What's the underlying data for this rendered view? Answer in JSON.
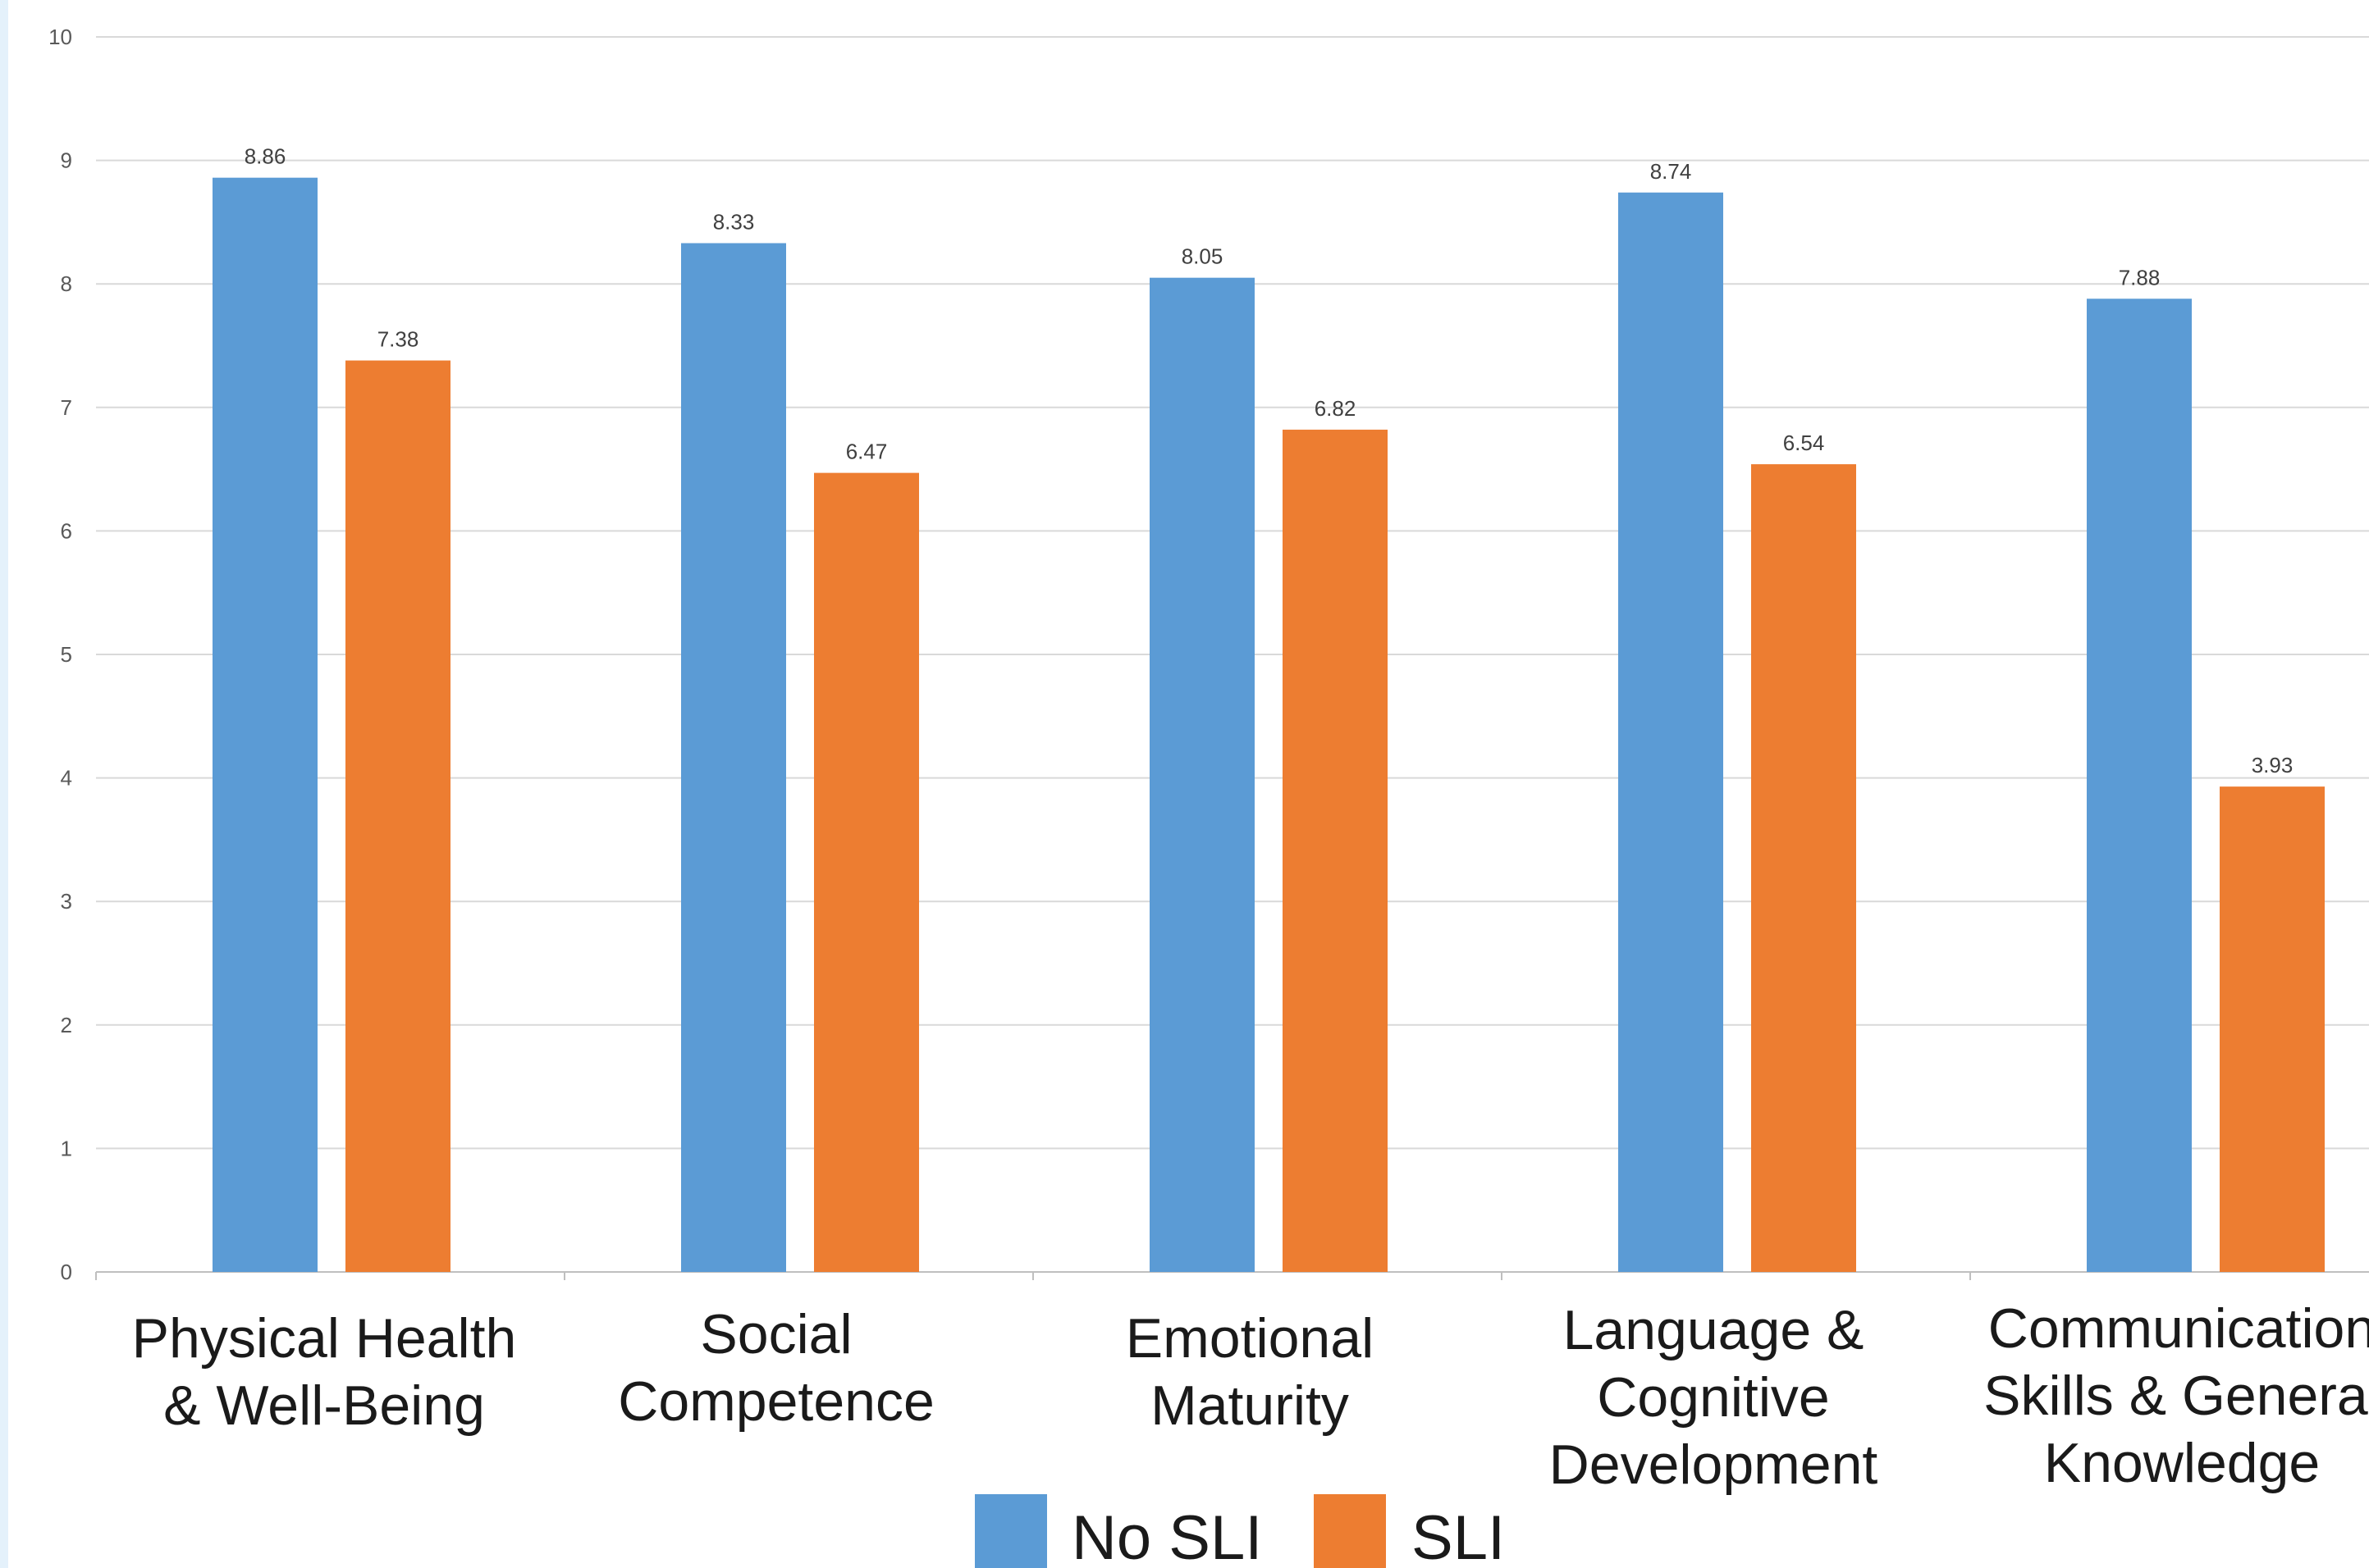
{
  "chart_data": {
    "type": "bar",
    "categories": [
      [
        "Physical Health",
        "& Well-Being"
      ],
      [
        "Social",
        "Competence"
      ],
      [
        "Emotional",
        "Maturity"
      ],
      [
        "Language &",
        "Cognitive",
        "Development"
      ],
      [
        "Communication",
        "Skills & General",
        "Knowledge"
      ]
    ],
    "series": [
      {
        "name": "No SLI",
        "color": "#5b9bd5",
        "values": [
          8.86,
          8.33,
          8.05,
          8.74,
          7.88
        ]
      },
      {
        "name": "SLI",
        "color": "#ed7d31",
        "values": [
          7.38,
          6.47,
          6.82,
          6.54,
          3.93
        ]
      }
    ],
    "ylim": [
      0,
      10
    ],
    "yticks": [
      0,
      1,
      2,
      3,
      4,
      5,
      6,
      7,
      8,
      9,
      10
    ],
    "grid": true,
    "legend": "bottom",
    "title": "",
    "xlabel": "",
    "ylabel": ""
  }
}
